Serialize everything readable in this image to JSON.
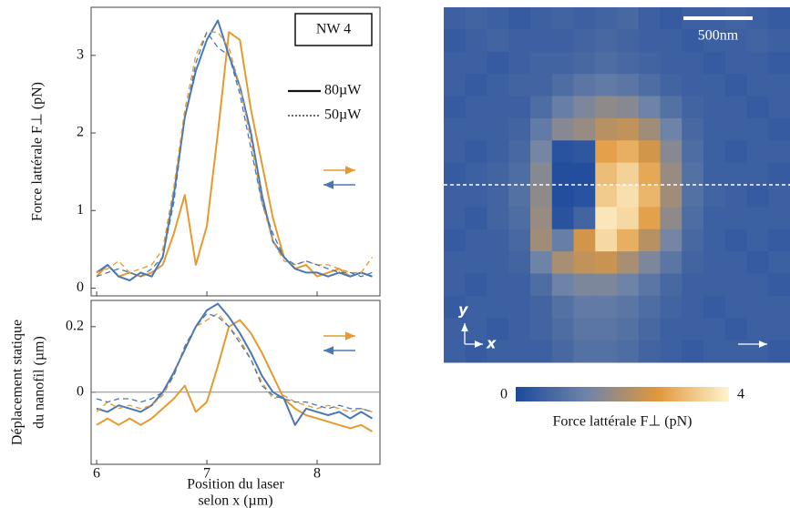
{
  "chart_data": [
    {
      "type": "line",
      "ylabel": "Force lattérale F⊥ (pN)",
      "annotation": "NW 4",
      "x": [
        6.0,
        6.1,
        6.2,
        6.3,
        6.4,
        6.5,
        6.6,
        6.7,
        6.8,
        6.9,
        7.0,
        7.1,
        7.2,
        7.3,
        7.4,
        7.5,
        7.6,
        7.7,
        7.8,
        7.9,
        8.0,
        8.1,
        8.2,
        8.3,
        8.4,
        8.5
      ],
      "xlim": [
        5.95,
        8.57
      ],
      "xticks": [
        6,
        7,
        8
      ],
      "show_xtick_labels": false,
      "ylim": [
        -0.1,
        3.62
      ],
      "yticks": [
        0,
        1,
        2,
        3
      ],
      "legend": [
        {
          "label": "80µW",
          "dash": "solid"
        },
        {
          "label": "50µW",
          "dash": "dotted"
        }
      ],
      "series": [
        {
          "color": "#e69a2e",
          "dash": "solid",
          "values": [
            0.15,
            0.3,
            0.15,
            0.2,
            0.15,
            0.2,
            0.3,
            0.7,
            1.2,
            0.3,
            0.8,
            2.0,
            3.3,
            3.2,
            2.3,
            1.6,
            0.9,
            0.4,
            0.25,
            0.3,
            0.15,
            0.2,
            0.25,
            0.15,
            0.2,
            0.15
          ]
        },
        {
          "color": "#4a78b5",
          "dash": "solid",
          "values": [
            0.2,
            0.3,
            0.15,
            0.1,
            0.2,
            0.15,
            0.4,
            1.2,
            2.2,
            2.8,
            3.2,
            3.45,
            3.0,
            2.6,
            2.0,
            1.2,
            0.6,
            0.4,
            0.25,
            0.2,
            0.2,
            0.15,
            0.2,
            0.15,
            0.2,
            0.15
          ]
        },
        {
          "color": "#e69a2e",
          "dash": "dashed",
          "values": [
            0.2,
            0.25,
            0.35,
            0.2,
            0.25,
            0.3,
            0.5,
            1.3,
            2.3,
            3.0,
            3.3,
            3.3,
            3.1,
            2.6,
            1.9,
            1.1,
            0.6,
            0.35,
            0.3,
            0.35,
            0.3,
            0.3,
            0.25,
            0.2,
            0.2,
            0.4
          ]
        },
        {
          "color": "#4a78b5",
          "dash": "dashed",
          "values": [
            0.15,
            0.2,
            0.25,
            0.2,
            0.15,
            0.25,
            0.4,
            1.1,
            2.2,
            2.9,
            3.3,
            3.1,
            3.0,
            2.5,
            1.8,
            1.1,
            0.7,
            0.4,
            0.3,
            0.35,
            0.3,
            0.25,
            0.2,
            0.2,
            0.15,
            0.2
          ]
        }
      ]
    },
    {
      "type": "line",
      "ylabel": [
        "Déplacement statique",
        "du nanofil (µm)"
      ],
      "xlabel": [
        "Position du laser",
        "selon x (µm)"
      ],
      "x": [
        6.0,
        6.1,
        6.2,
        6.3,
        6.4,
        6.5,
        6.6,
        6.7,
        6.8,
        6.9,
        7.0,
        7.1,
        7.2,
        7.3,
        7.4,
        7.5,
        7.6,
        7.7,
        7.8,
        7.9,
        8.0,
        8.1,
        8.2,
        8.3,
        8.4,
        8.5
      ],
      "xlim": [
        5.95,
        8.57
      ],
      "xticks": [
        6,
        7,
        8
      ],
      "show_xtick_labels": true,
      "ylim": [
        -0.22,
        0.28
      ],
      "yticks": [
        0,
        0.2
      ],
      "hline": 0,
      "series": [
        {
          "color": "#e69a2e",
          "dash": "solid",
          "values": [
            -0.1,
            -0.08,
            -0.1,
            -0.08,
            -0.1,
            -0.08,
            -0.05,
            -0.02,
            0.02,
            -0.06,
            -0.03,
            0.08,
            0.2,
            0.22,
            0.18,
            0.12,
            0.05,
            -0.02,
            -0.05,
            -0.07,
            -0.08,
            -0.09,
            -0.1,
            -0.11,
            -0.1,
            -0.12
          ]
        },
        {
          "color": "#4a78b5",
          "dash": "solid",
          "values": [
            -0.05,
            -0.06,
            -0.04,
            -0.05,
            -0.06,
            -0.04,
            0.0,
            0.06,
            0.13,
            0.2,
            0.25,
            0.27,
            0.23,
            0.18,
            0.12,
            0.05,
            0.0,
            -0.02,
            -0.1,
            -0.05,
            -0.06,
            -0.07,
            -0.06,
            -0.08,
            -0.06,
            -0.08
          ]
        },
        {
          "color": "#e69a2e",
          "dash": "dashed",
          "values": [
            -0.06,
            -0.03,
            -0.05,
            -0.04,
            -0.05,
            -0.04,
            -0.01,
            0.05,
            0.14,
            0.2,
            0.22,
            0.24,
            0.2,
            0.16,
            0.1,
            0.03,
            -0.02,
            -0.01,
            -0.03,
            -0.04,
            -0.05,
            -0.04,
            -0.05,
            -0.06,
            -0.05,
            -0.06
          ]
        },
        {
          "color": "#4a78b5",
          "dash": "dashed",
          "values": [
            -0.02,
            -0.03,
            -0.02,
            -0.02,
            -0.03,
            -0.02,
            0.0,
            0.05,
            0.14,
            0.2,
            0.24,
            0.23,
            0.2,
            0.15,
            0.1,
            0.02,
            -0.01,
            -0.02,
            -0.03,
            -0.03,
            -0.04,
            -0.05,
            -0.04,
            -0.05,
            -0.05,
            -0.06
          ]
        }
      ]
    },
    {
      "type": "heatmap",
      "scale_bar_label": "500nm",
      "axis_labels": {
        "x": "x",
        "y": "y"
      },
      "colorbar_label": "Force lattérale F⊥ (pN)",
      "zlim": [
        0,
        4
      ],
      "zticks": [
        0,
        4
      ],
      "colors": [
        "#1d4a9c",
        "#6f84a8",
        "#e0983c",
        "#fff4cf"
      ],
      "values": [
        [
          0.5,
          0.6,
          0.5,
          0.4,
          0.5,
          0.6,
          0.5,
          0.6,
          0.7,
          0.5,
          0.4,
          0.5,
          0.5,
          0.6,
          0.5,
          0.4
        ],
        [
          0.4,
          0.5,
          0.6,
          0.5,
          0.5,
          0.5,
          0.6,
          0.7,
          0.6,
          0.5,
          0.5,
          0.4,
          0.5,
          0.5,
          0.6,
          0.5
        ],
        [
          0.5,
          0.5,
          0.4,
          0.5,
          0.6,
          0.6,
          0.7,
          0.8,
          0.7,
          0.6,
          0.5,
          0.5,
          0.4,
          0.5,
          0.5,
          0.4
        ],
        [
          0.5,
          0.4,
          0.5,
          0.6,
          0.6,
          0.8,
          1.0,
          1.1,
          1.0,
          0.8,
          0.6,
          0.5,
          0.5,
          0.4,
          0.5,
          0.5
        ],
        [
          0.4,
          0.5,
          0.5,
          0.5,
          0.8,
          1.2,
          1.5,
          1.7,
          1.6,
          1.3,
          0.9,
          0.6,
          0.5,
          0.5,
          0.4,
          0.5
        ],
        [
          0.5,
          0.5,
          0.5,
          0.6,
          1.1,
          1.6,
          1.8,
          2.2,
          2.3,
          1.9,
          1.3,
          0.7,
          0.5,
          0.5,
          0.5,
          0.4
        ],
        [
          0.5,
          0.4,
          0.5,
          0.7,
          1.4,
          0.2,
          0.3,
          2.8,
          3.0,
          2.5,
          1.6,
          0.8,
          0.5,
          0.4,
          0.5,
          0.5
        ],
        [
          0.4,
          0.5,
          0.6,
          0.8,
          1.6,
          0.1,
          0.1,
          3.2,
          3.5,
          2.9,
          1.8,
          0.9,
          0.5,
          0.5,
          0.5,
          0.4
        ],
        [
          0.5,
          0.5,
          0.6,
          0.9,
          1.7,
          0.1,
          0.2,
          3.4,
          3.7,
          3.1,
          1.9,
          0.9,
          0.6,
          0.5,
          0.4,
          0.5
        ],
        [
          0.5,
          0.4,
          0.6,
          0.8,
          1.8,
          0.2,
          0.6,
          3.8,
          3.6,
          2.8,
          1.7,
          0.8,
          0.5,
          0.5,
          0.5,
          0.5
        ],
        [
          0.4,
          0.5,
          0.5,
          0.7,
          1.9,
          1.2,
          2.5,
          3.6,
          3.0,
          2.2,
          1.4,
          0.7,
          0.5,
          0.4,
          0.5,
          0.4
        ],
        [
          0.5,
          0.5,
          0.5,
          0.6,
          1.3,
          2.0,
          2.3,
          2.4,
          2.0,
          1.5,
          1.0,
          0.6,
          0.5,
          0.5,
          0.4,
          0.5
        ],
        [
          0.5,
          0.4,
          0.5,
          0.5,
          0.8,
          1.3,
          1.5,
          1.5,
          1.3,
          1.0,
          0.7,
          0.5,
          0.5,
          0.5,
          0.5,
          0.4
        ],
        [
          0.4,
          0.5,
          0.5,
          0.5,
          0.6,
          0.9,
          1.1,
          1.1,
          1.0,
          0.8,
          0.6,
          0.5,
          0.4,
          0.5,
          0.5,
          0.5
        ],
        [
          0.5,
          0.5,
          0.4,
          0.5,
          0.6,
          0.8,
          1.0,
          1.0,
          0.9,
          0.7,
          0.5,
          0.5,
          0.5,
          0.4,
          0.5,
          0.5
        ],
        [
          0.5,
          0.4,
          0.5,
          0.5,
          0.5,
          0.7,
          0.9,
          0.9,
          0.8,
          0.6,
          0.5,
          0.4,
          0.5,
          0.5,
          0.5,
          0.4
        ]
      ]
    }
  ]
}
